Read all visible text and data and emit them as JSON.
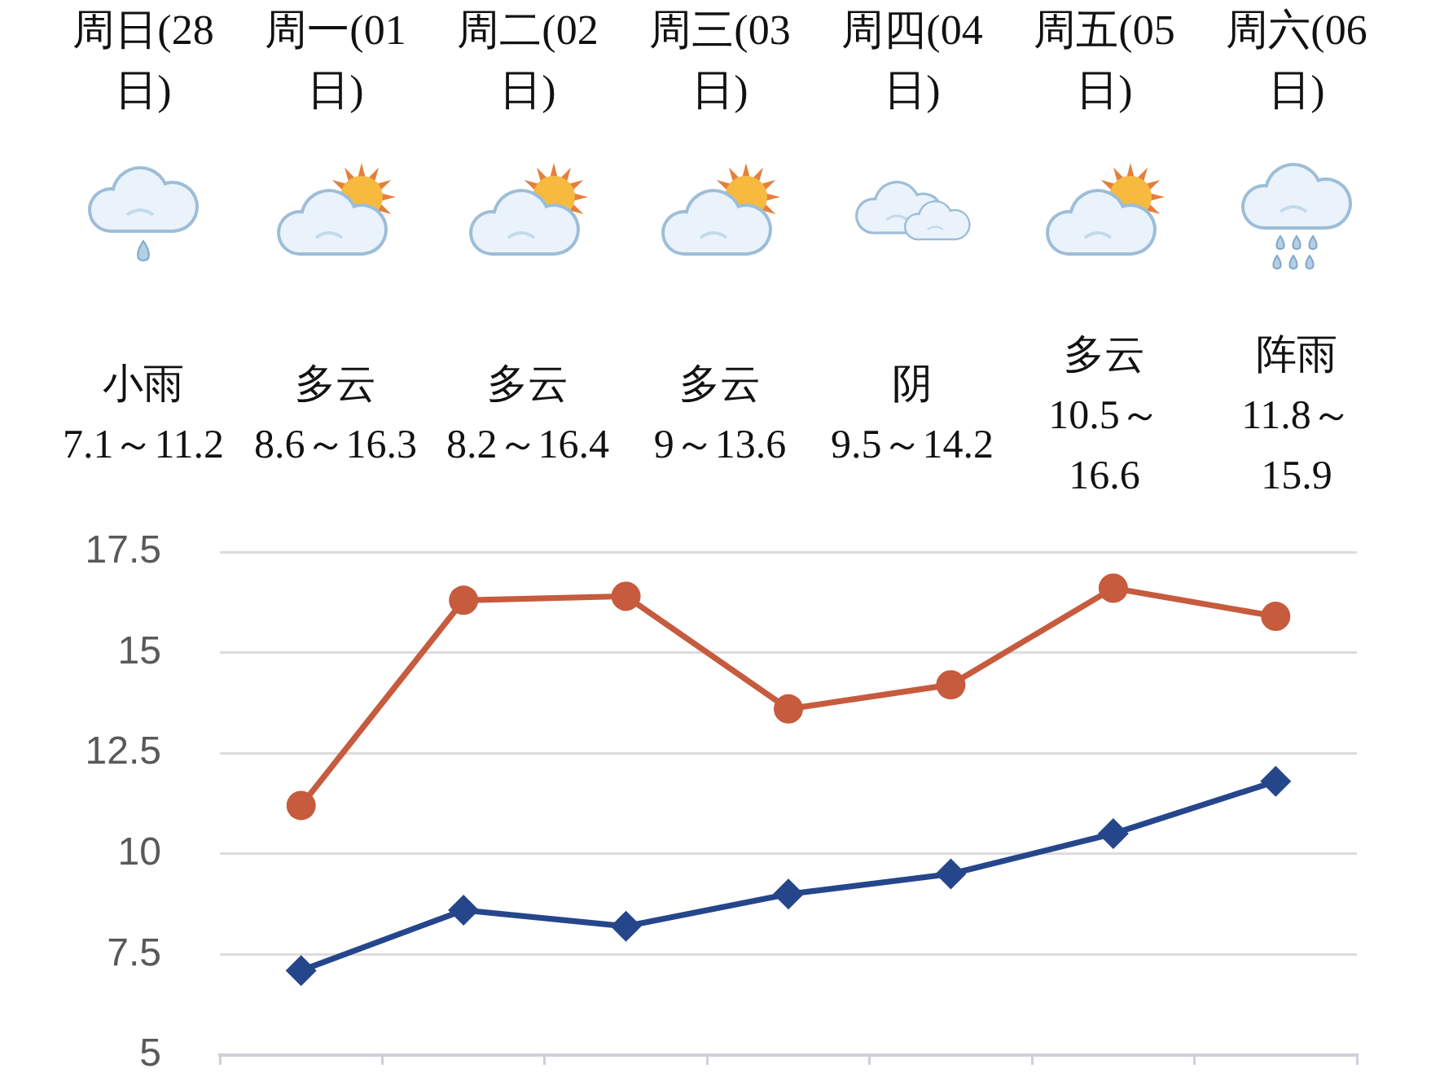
{
  "chart_data": {
    "type": "line",
    "categories": [
      null,
      null,
      null,
      null,
      null,
      null,
      null
    ],
    "series": [
      {
        "color": "#26468c",
        "marker": "diamond",
        "values": [
          7.1,
          8.6,
          8.2,
          9,
          9.5,
          10.5,
          11.8
        ]
      },
      {
        "color": "#c65b3e",
        "marker": "circle",
        "values": [
          11.2,
          16.3,
          16.4,
          13.6,
          14.2,
          16.6,
          15.9
        ]
      }
    ],
    "ylim": [
      5,
      17.5
    ],
    "yticks": [
      5,
      7.5,
      10,
      12.5,
      15,
      17.5
    ],
    "grid": "y",
    "line_style": "solid",
    "annotations": [
      "周日(28日)",
      "周一(01日)",
      "周二(02日)",
      "周三(03日)",
      "周四(04日)",
      "周五(05日)",
      "周六(06日)",
      "小雨",
      "多云",
      "多云",
      "多云",
      "阴",
      "多云",
      "阵雨",
      "7.1～11.2",
      "8.6～16.3",
      "8.2～16.4",
      "9～13.6",
      "9.5～14.2",
      "10.5～16.6",
      "11.8～15.9"
    ]
  }
}
